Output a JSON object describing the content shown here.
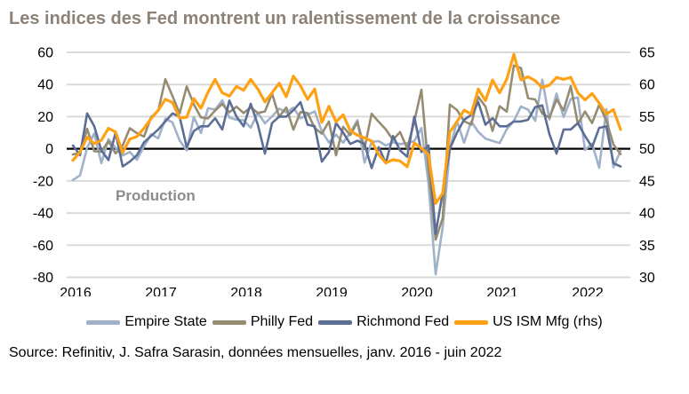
{
  "title": "Les indices des Fed montrent un ralentissement de la croissance",
  "source": "Source: Refinitiv, J. Safra Sarasin, données mensuelles, janv. 2016 - juin 2022",
  "colors": {
    "title": "#8C8278",
    "grid": "#D9D9D9",
    "zero_line": "#000000",
    "axis_text": "#000000",
    "annotation": "#8C8C8C"
  },
  "chart_data": {
    "type": "line",
    "title": "Les indices des Fed montrent un ralentissement de la croissance",
    "x_unit": "month",
    "x_start": "2016-01",
    "x_end": "2022-06",
    "x_tick_labels": [
      "2016",
      "2017",
      "2018",
      "2019",
      "2020",
      "2021",
      "2022"
    ],
    "left_axis": {
      "ticks": [
        60,
        40,
        20,
        0,
        -20,
        -40,
        -60,
        -80
      ],
      "range": [
        -80,
        60
      ]
    },
    "right_axis": {
      "ticks": [
        65,
        60,
        55,
        50,
        45,
        40,
        35,
        30
      ],
      "range": [
        30,
        65
      ]
    },
    "grid": "horizontal",
    "legend_position": "bottom",
    "annotation": {
      "text": "Production"
    },
    "series": [
      {
        "id": "empire-state",
        "name": "Empire State",
        "axis": "left",
        "color": "#A0B2CA",
        "values": [
          -19.4,
          -16.6,
          0.6,
          9.6,
          -9.0,
          6.0,
          0.6,
          -4.2,
          -2.0,
          -6.8,
          1.5,
          9.0,
          6.5,
          18.7,
          16.4,
          5.2,
          -1.0,
          19.8,
          9.8,
          25.2,
          24.4,
          30.2,
          19.4,
          18.0,
          17.7,
          13.1,
          22.5,
          15.8,
          20.1,
          25.0,
          22.6,
          25.6,
          19.0,
          21.1,
          23.3,
          10.9,
          3.9,
          8.8,
          3.7,
          10.1,
          17.8,
          -8.6,
          4.3,
          4.8,
          2.0,
          4.0,
          2.9,
          3.5,
          4.8,
          12.9,
          -21.5,
          -78.2,
          -48.5,
          -0.2,
          17.2,
          3.7,
          17.0,
          10.5,
          6.3,
          4.9,
          3.5,
          12.1,
          17.4,
          26.3,
          24.3,
          17.4,
          43.0,
          18.3,
          34.3,
          19.8,
          30.9,
          31.9,
          -0.7,
          3.1,
          -11.8,
          24.6,
          -11.6,
          -1.2
        ]
      },
      {
        "id": "philly-fed",
        "name": "Philly Fed",
        "axis": "left",
        "color": "#968C72",
        "values": [
          -3.5,
          -2.8,
          12.4,
          -1.6,
          -1.8,
          4.7,
          -2.9,
          2.0,
          12.8,
          9.7,
          7.6,
          19.7,
          23.6,
          43.3,
          32.8,
          22.0,
          38.8,
          27.6,
          19.5,
          18.9,
          23.8,
          27.9,
          22.7,
          26.2,
          22.2,
          25.8,
          22.3,
          23.2,
          34.4,
          19.9,
          25.7,
          11.9,
          22.9,
          22.2,
          12.9,
          9.4,
          17.0,
          -4.1,
          13.7,
          8.5,
          16.6,
          0.3,
          21.8,
          16.8,
          12.0,
          5.6,
          10.4,
          0.3,
          17.0,
          36.7,
          -12.7,
          -56.6,
          -43.1,
          27.5,
          24.1,
          17.2,
          15.0,
          32.3,
          26.3,
          11.1,
          26.5,
          23.1,
          51.8,
          50.2,
          31.5,
          30.7,
          21.9,
          19.4,
          30.7,
          23.8,
          39.0,
          15.4,
          23.2,
          16.0,
          27.4,
          17.6,
          2.6,
          -3.3
        ]
      },
      {
        "id": "richmond-fed",
        "name": "Richmond Fed",
        "axis": "left",
        "color": "#5D6E96",
        "values": [
          2,
          -4,
          22,
          14,
          -1,
          -7,
          10,
          -11,
          -8,
          -4,
          4,
          8,
          12,
          17,
          22,
          20,
          1,
          11,
          14,
          14,
          19,
          12,
          30,
          20,
          14,
          28,
          15,
          -3,
          16,
          20,
          20,
          24,
          29,
          15,
          14,
          -8,
          -2,
          16,
          10,
          3,
          5,
          3,
          -12,
          1,
          -9,
          8,
          -1,
          -5,
          20,
          -2,
          2,
          -53,
          -27,
          0,
          10,
          18,
          21,
          29,
          15,
          19,
          14,
          14,
          17,
          17,
          18,
          26,
          27,
          9,
          -3,
          12,
          12,
          16,
          8,
          1,
          13,
          14,
          -9,
          -11
        ]
      },
      {
        "id": "us-ism-mfg",
        "name": "US ISM Mfg (rhs)",
        "axis": "right",
        "color": "#FFA114",
        "values": [
          48.2,
          49.5,
          51.8,
          50.8,
          51.3,
          53.2,
          52.6,
          49.4,
          51.5,
          51.9,
          53.2,
          54.7,
          56.0,
          57.7,
          57.2,
          54.8,
          54.9,
          57.8,
          56.3,
          58.8,
          60.8,
          58.7,
          58.2,
          59.7,
          59.1,
          60.8,
          59.3,
          57.3,
          58.7,
          60.2,
          58.1,
          61.3,
          59.8,
          57.7,
          59.3,
          54.1,
          56.6,
          54.2,
          55.3,
          52.8,
          52.1,
          51.7,
          51.2,
          49.1,
          47.8,
          48.3,
          48.1,
          47.2,
          50.9,
          50.1,
          49.1,
          41.5,
          43.1,
          52.6,
          54.2,
          56.0,
          55.4,
          59.3,
          57.5,
          60.7,
          58.7,
          60.8,
          64.7,
          60.7,
          61.2,
          60.6,
          59.5,
          59.9,
          61.1,
          60.8,
          61.1,
          58.7,
          57.6,
          58.6,
          57.1,
          55.4,
          56.1,
          53.0
        ]
      }
    ]
  }
}
